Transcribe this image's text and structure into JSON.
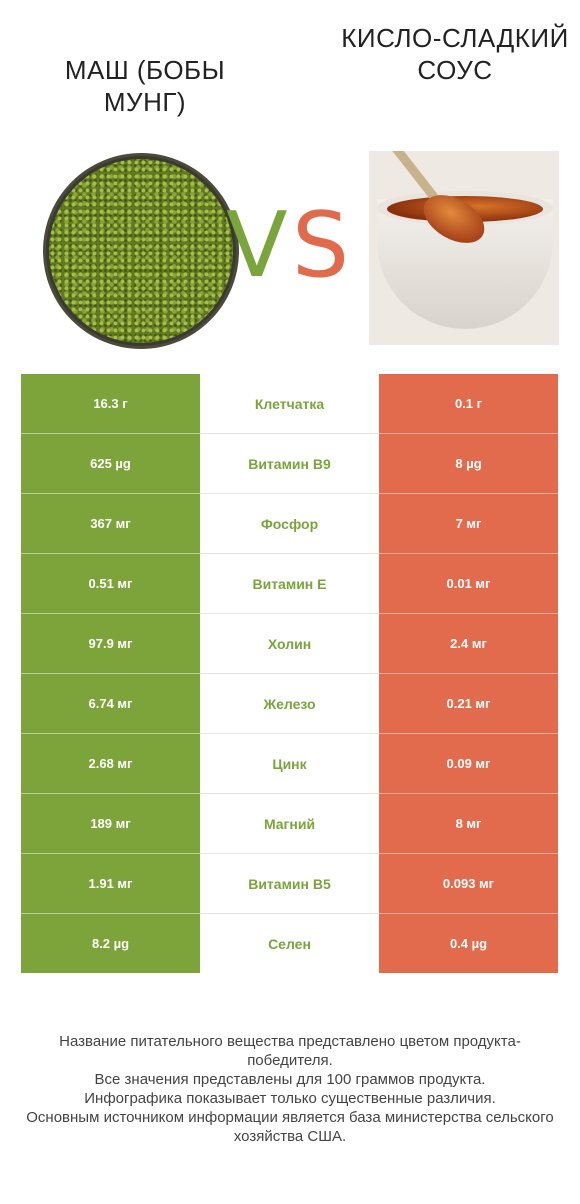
{
  "header": {
    "left_title": "МАШ (БОБЫ МУНГ)",
    "right_title": "КИСЛО-СЛАДКИЙ СОУС",
    "vs_v": "V",
    "vs_s": "S"
  },
  "colors": {
    "left_accent": "#7ca43b",
    "right_accent": "#e36b4d"
  },
  "rows": [
    {
      "left": "16.3 г",
      "nutrient": "Клетчатка",
      "right": "0.1 г"
    },
    {
      "left": "625 µg",
      "nutrient": "Витамин B9",
      "right": "8 µg"
    },
    {
      "left": "367 мг",
      "nutrient": "Фосфор",
      "right": "7 мг"
    },
    {
      "left": "0.51 мг",
      "nutrient": "Витамин E",
      "right": "0.01 мг"
    },
    {
      "left": "97.9 мг",
      "nutrient": "Холин",
      "right": "2.4 мг"
    },
    {
      "left": "6.74 мг",
      "nutrient": "Железо",
      "right": "0.21 мг"
    },
    {
      "left": "2.68 мг",
      "nutrient": "Цинк",
      "right": "0.09 мг"
    },
    {
      "left": "189 мг",
      "nutrient": "Магний",
      "right": "8 мг"
    },
    {
      "left": "1.91 мг",
      "nutrient": "Витамин B5",
      "right": "0.093 мг"
    },
    {
      "left": "8.2 µg",
      "nutrient": "Селен",
      "right": "0.4 µg"
    }
  ],
  "footer": {
    "line1": "Название питательного вещества представлено цветом продукта-победителя.",
    "line2": "Все значения представлены для 100 граммов продукта.",
    "line3": "Инфографика показывает только существенные различия.",
    "line4": "Основным источником информации является база министерства сельского хозяйства США."
  }
}
